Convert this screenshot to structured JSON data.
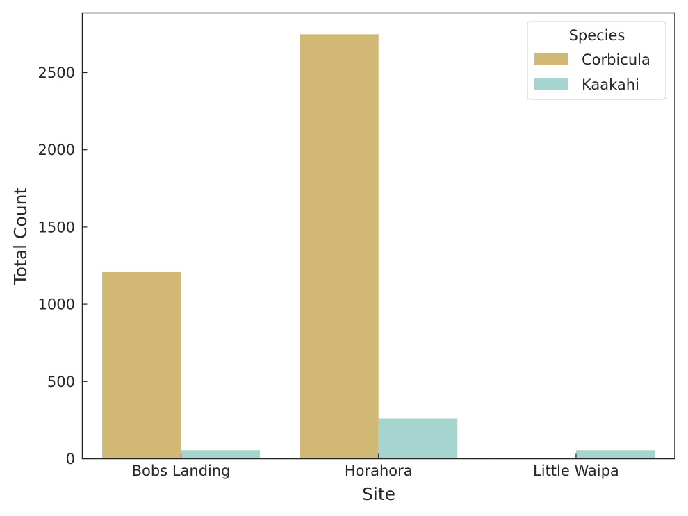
{
  "chart_data": {
    "type": "bar",
    "title": "",
    "xlabel": "Site",
    "ylabel": "Total Count",
    "categories": [
      "Bobs Landing",
      "Horahora",
      "Little Waipa"
    ],
    "series": [
      {
        "name": "Corbicula",
        "color": "#d1b975",
        "values": [
          1210,
          2748,
          4
        ]
      },
      {
        "name": "Kaakahi",
        "color": "#a6d4ce",
        "values": [
          55,
          261,
          55
        ]
      }
    ],
    "ylim": [
      0,
      2860
    ],
    "yticks": [
      0,
      500,
      1000,
      1500,
      2000,
      2500
    ],
    "grid": false,
    "legend": {
      "title": "Species",
      "position": "upper right"
    }
  }
}
